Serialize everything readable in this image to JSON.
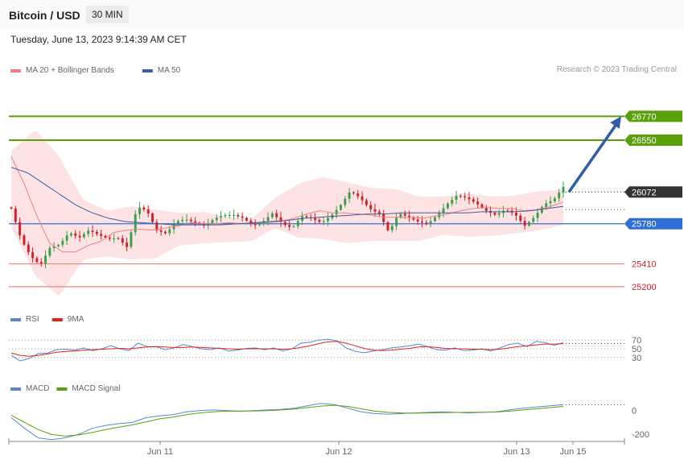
{
  "header": {
    "title": "Bitcoin / USD",
    "interval": "30 MIN"
  },
  "datetime": "Tuesday, June 13, 2023 9:14:39 AM CET",
  "credit": "Research © 2023 Trading Central",
  "colors": {
    "ma20": "#f08080",
    "ma50": "#3a5fa0",
    "resistance": "#5aa00a",
    "support": "#f08080",
    "pivot": "#2f6fd8",
    "last": "#333333",
    "rsi": "#5b86d6",
    "rsi_ma": "#e0241b",
    "macd": "#5b86d6",
    "macd_signal": "#5aa00a",
    "up": "#3aa14a",
    "down": "#d0212a"
  },
  "chart_data": [
    {
      "type": "candlestick",
      "title": "Bitcoin / USD",
      "interval": "30 MIN",
      "legend": [
        {
          "name": "MA 20 + Bollinger Bands",
          "color": "#f08080"
        },
        {
          "name": "MA 50",
          "color": "#3a5fa0"
        }
      ],
      "ylim": [
        25080,
        27100
      ],
      "x_ticks": [
        "Jun 11",
        "Jun 12",
        "Jun 13",
        "Jun 15"
      ],
      "last_price": 26072,
      "levels": [
        {
          "value": 26770,
          "label": "26770",
          "kind": "resistance"
        },
        {
          "value": 26550,
          "label": "26550",
          "kind": "resistance"
        },
        {
          "value": 26072,
          "label": "26072",
          "kind": "last"
        },
        {
          "value": 25780,
          "label": "25780",
          "kind": "pivot"
        },
        {
          "value": 25410,
          "label": "25410",
          "kind": "support"
        },
        {
          "value": 25200,
          "label": "25200",
          "kind": "support"
        }
      ],
      "target_arrow": {
        "from": 26072,
        "to": 26770
      },
      "close_keypoints": [
        25920,
        25640,
        25480,
        25400,
        25560,
        25590,
        25700,
        25650,
        25720,
        25680,
        25640,
        25650,
        25560,
        25940,
        25900,
        25720,
        25690,
        25800,
        25820,
        25790,
        25760,
        25830,
        25860,
        25860,
        25830,
        25760,
        25800,
        25880,
        25780,
        25740,
        25850,
        25830,
        25790,
        25850,
        25950,
        26080,
        26020,
        25920,
        25870,
        25700,
        25880,
        25840,
        25800,
        25780,
        25860,
        25960,
        26040,
        26020,
        25970,
        25900,
        25860,
        25910,
        25870,
        25760,
        25840,
        25960,
        26000,
        26120
      ],
      "ma20_keypoints": [
        26400,
        26150,
        25850,
        25600,
        25520,
        25520,
        25580,
        25620,
        25700,
        25720,
        25730,
        25720,
        25740,
        25760,
        25790,
        25780,
        25780,
        25790,
        25780,
        25790,
        25790,
        25800,
        25830,
        25870,
        25900,
        25880,
        25880,
        25870,
        25860,
        25840,
        25840,
        25840,
        25830,
        25850,
        25870,
        25900,
        25920,
        25930,
        25920,
        25920,
        25900,
        25910,
        25940,
        25980
      ],
      "ma50_keypoints": [
        26300,
        26250,
        26150,
        26050,
        25950,
        25880,
        25830,
        25800,
        25790,
        25780,
        25770,
        25770,
        25770,
        25770,
        25780,
        25790,
        25800,
        25810,
        25830,
        25840,
        25850,
        25860,
        25870,
        25870,
        25880,
        25880,
        25880,
        25880,
        25880,
        25890,
        25890,
        25890,
        25900,
        25920,
        25940
      ],
      "bb_upper_keypoints": [
        26450,
        26650,
        26400,
        26000,
        25900,
        25940,
        25910,
        25880,
        25890,
        25840,
        25820,
        26020,
        26150,
        26210,
        26160,
        26110,
        26100,
        26030,
        26030,
        26060,
        26030,
        26040,
        26080,
        26090
      ],
      "bb_lower_keypoints": [
        25750,
        25300,
        25110,
        25450,
        25480,
        25450,
        25460,
        25580,
        25600,
        25610,
        25620,
        25740,
        25650,
        25640,
        25600,
        25620,
        25620,
        25620,
        25680,
        25660,
        25670,
        25690,
        25720,
        25770
      ]
    },
    {
      "type": "line",
      "legend": [
        {
          "name": "RSI",
          "color": "#5b86d6"
        },
        {
          "name": "9MA",
          "color": "#e0241b"
        }
      ],
      "ylim": [
        0,
        100
      ],
      "levels": [
        70,
        50,
        30
      ],
      "series": [
        {
          "name": "RSI",
          "values": [
            35,
            22,
            28,
            39,
            40,
            48,
            49,
            47,
            52,
            46,
            50,
            57,
            50,
            46,
            63,
            55,
            55,
            48,
            52,
            60,
            55,
            50,
            48,
            52,
            45,
            47,
            51,
            52,
            48,
            52,
            45,
            50,
            63,
            65,
            70,
            72,
            68,
            52,
            44,
            41,
            45,
            48,
            52,
            54,
            57,
            61,
            55,
            48,
            47,
            52,
            46,
            47,
            50,
            45,
            52,
            60,
            63,
            55,
            67,
            64,
            58,
            64
          ]
        },
        {
          "name": "9MA",
          "values": [
            40,
            35,
            33,
            35,
            38,
            42,
            44,
            45,
            47,
            48,
            49,
            50,
            51,
            50,
            52,
            54,
            55,
            54,
            53,
            53,
            54,
            53,
            52,
            51,
            50,
            49,
            50,
            50,
            50,
            50,
            49,
            50,
            53,
            57,
            62,
            66,
            67,
            63,
            57,
            51,
            47,
            46,
            47,
            49,
            51,
            54,
            55,
            53,
            51,
            50,
            50,
            49,
            49,
            48,
            49,
            52,
            55,
            57,
            59,
            61,
            61,
            62
          ]
        }
      ]
    },
    {
      "type": "line",
      "legend": [
        {
          "name": "MACD",
          "color": "#5b86d6"
        },
        {
          "name": "MACD Signal",
          "color": "#5aa00a"
        }
      ],
      "ylim": [
        -260,
        120
      ],
      "y_ticks": [
        0,
        -200
      ],
      "series": [
        {
          "name": "MACD",
          "values": [
            -60,
            -150,
            -230,
            -245,
            -230,
            -200,
            -150,
            -125,
            -110,
            -100,
            -60,
            -45,
            -35,
            -10,
            0,
            5,
            0,
            -5,
            0,
            5,
            10,
            20,
            40,
            60,
            50,
            20,
            -10,
            -25,
            -30,
            -25,
            -20,
            -15,
            -10,
            -15,
            -20,
            -15,
            -10,
            5,
            20,
            30,
            40,
            50
          ]
        },
        {
          "name": "MACD Signal",
          "values": [
            -40,
            -100,
            -160,
            -200,
            -215,
            -205,
            -185,
            -160,
            -140,
            -120,
            -95,
            -70,
            -55,
            -35,
            -20,
            -10,
            -5,
            -5,
            -3,
            0,
            5,
            12,
            25,
            38,
            45,
            35,
            15,
            -5,
            -15,
            -20,
            -22,
            -20,
            -18,
            -16,
            -15,
            -14,
            -12,
            -5,
            5,
            15,
            25,
            35
          ]
        }
      ]
    }
  ]
}
